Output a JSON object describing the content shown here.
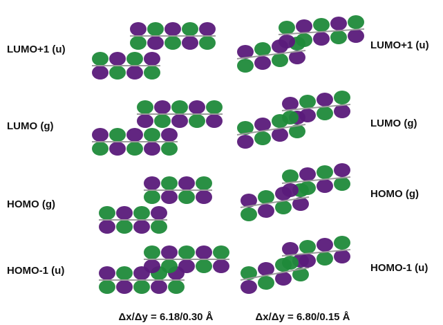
{
  "left_labels": [
    "LUMO+1 (u)",
    "LUMO (g)",
    "HOMO (g)",
    "HOMO-1 (u)"
  ],
  "right_labels": [
    "LUMO+1 (u)",
    "LUMO (g)",
    "HOMO (g)",
    "HOMO-1 (u)"
  ],
  "captions": [
    "Δx/Δy = 6.18/0.30 Å",
    "Δx/Δy = 6.80/0.15 Å"
  ]
}
